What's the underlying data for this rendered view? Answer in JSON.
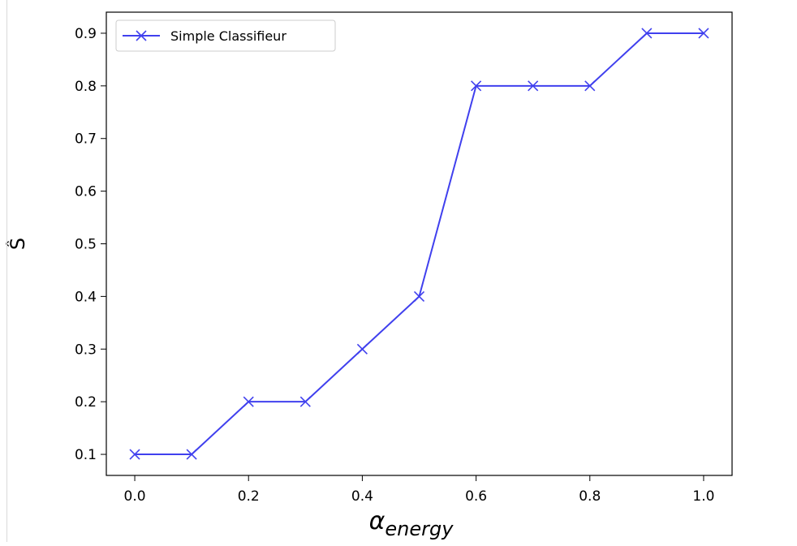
{
  "chart_data": {
    "type": "line",
    "title": "",
    "xlabel_base": "α",
    "xlabel_sub": "energy",
    "ylabel": "Ŝ",
    "xlim": [
      -0.05,
      1.05
    ],
    "ylim": [
      0.06,
      0.94
    ],
    "xticks": [
      0.0,
      0.2,
      0.4,
      0.6,
      0.8,
      1.0
    ],
    "xtick_labels": [
      "0.0",
      "0.2",
      "0.4",
      "0.6",
      "0.8",
      "1.0"
    ],
    "yticks": [
      0.1,
      0.2,
      0.3,
      0.4,
      0.5,
      0.6,
      0.7,
      0.8,
      0.9
    ],
    "ytick_labels": [
      "0.1",
      "0.2",
      "0.3",
      "0.4",
      "0.5",
      "0.6",
      "0.7",
      "0.8",
      "0.9"
    ],
    "grid": false,
    "legend_position": "top-left",
    "series": [
      {
        "name": "Simple Classifieur",
        "color": "#4040ee",
        "marker": "x",
        "x": [
          0.0,
          0.1,
          0.2,
          0.3,
          0.4,
          0.5,
          0.6,
          0.7,
          0.8,
          0.9,
          1.0
        ],
        "y": [
          0.1,
          0.1,
          0.2,
          0.2,
          0.3,
          0.4,
          0.8,
          0.8,
          0.8,
          0.9,
          0.9
        ]
      }
    ]
  }
}
